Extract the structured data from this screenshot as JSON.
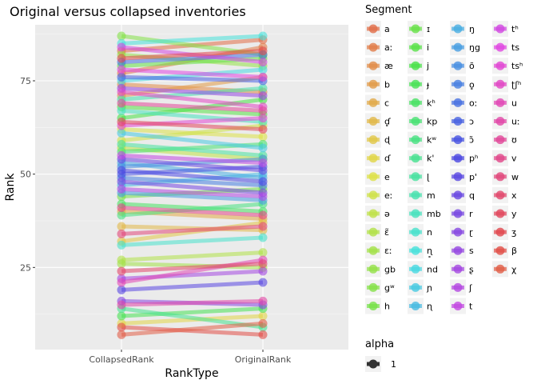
{
  "chart_data": {
    "type": "line",
    "title": "Original versus collapsed inventories",
    "xlabel": "RankType",
    "ylabel": "Rank",
    "categories": [
      "CollapsedRank",
      "OriginalRank"
    ],
    "ylim": [
      3,
      90
    ],
    "yticks": [
      25,
      50,
      75
    ],
    "grid": true,
    "legend": {
      "title": "Segment",
      "placement": "right",
      "segments": [
        "a",
        "aː",
        "æ",
        "b",
        "c",
        "ɗ̥",
        "ɖ",
        "ɗ",
        "e",
        "eː",
        "ə",
        "ɛ̃",
        "ɛː",
        "gb",
        "gʷ",
        "h",
        "ɪ",
        "i",
        "j",
        "ɟ",
        "kʰ",
        "kp",
        "kʷ",
        "k'",
        "ɭ",
        "m",
        "mb",
        "n",
        "ɳ̥",
        "nd",
        "ɲ",
        "ɳ",
        "ŋ",
        "ŋg",
        "õ",
        "o̥",
        "oː",
        "ɔ",
        "ɔ̃",
        "pʰ",
        "p'",
        "q",
        "r",
        "ɽ",
        "s",
        "ʂ",
        "ʃ",
        "t",
        "tʰ",
        "ts",
        "tsʰ",
        "ʈʃʰ",
        "u",
        "uː",
        "ʊ",
        "v",
        "w",
        "x",
        "y",
        "ʒ",
        "β",
        "χ"
      ]
    },
    "alpha_legend": {
      "title": "alpha",
      "value": "1"
    },
    "series": [
      {
        "name": "a",
        "values": [
          83,
          86
        ]
      },
      {
        "name": "aː",
        "values": [
          77,
          84
        ]
      },
      {
        "name": "æ",
        "values": [
          74,
          72
        ]
      },
      {
        "name": "b",
        "values": [
          71,
          76
        ]
      },
      {
        "name": "c",
        "values": [
          40,
          38
        ]
      },
      {
        "name": "ɗ̥",
        "values": [
          36,
          35
        ]
      },
      {
        "name": "ɖ",
        "values": [
          32,
          37
        ]
      },
      {
        "name": "ɗ",
        "values": [
          10,
          12
        ]
      },
      {
        "name": "e",
        "values": [
          62,
          60
        ]
      },
      {
        "name": "eː",
        "values": [
          59,
          63
        ]
      },
      {
        "name": "ə",
        "values": [
          57,
          54
        ]
      },
      {
        "name": "ɛ̃",
        "values": [
          27,
          29
        ]
      },
      {
        "name": "ɛː",
        "values": [
          26,
          25
        ]
      },
      {
        "name": "gb",
        "values": [
          82,
          79
        ]
      },
      {
        "name": "gʷ",
        "values": [
          87,
          82
        ]
      },
      {
        "name": "h",
        "values": [
          44,
          46
        ]
      },
      {
        "name": "ɪ",
        "values": [
          79,
          81
        ]
      },
      {
        "name": "i",
        "values": [
          68,
          66
        ]
      },
      {
        "name": "j",
        "values": [
          65,
          70
        ]
      },
      {
        "name": "ɟ",
        "values": [
          12,
          14
        ]
      },
      {
        "name": "kʰ",
        "values": [
          42,
          40
        ]
      },
      {
        "name": "kp",
        "values": [
          56,
          58
        ]
      },
      {
        "name": "kʷ",
        "values": [
          39,
          42
        ]
      },
      {
        "name": "k'",
        "values": [
          14,
          9
        ]
      },
      {
        "name": "ɭ",
        "values": [
          58,
          55
        ]
      },
      {
        "name": "m",
        "values": [
          70,
          73
        ]
      },
      {
        "name": "mb",
        "values": [
          67,
          64
        ]
      },
      {
        "name": "n",
        "values": [
          31,
          33
        ]
      },
      {
        "name": "ɳ̥",
        "values": [
          85,
          87
        ]
      },
      {
        "name": "nd",
        "values": [
          75,
          78
        ]
      },
      {
        "name": "ɲ",
        "values": [
          61,
          57
        ]
      },
      {
        "name": "ɳ",
        "values": [
          47,
          50
        ]
      },
      {
        "name": "ŋ",
        "values": [
          53,
          49
        ]
      },
      {
        "name": "ŋg",
        "values": [
          45,
          43
        ]
      },
      {
        "name": "õ",
        "values": [
          52,
          54
        ]
      },
      {
        "name": "o̥",
        "values": [
          49,
          47
        ]
      },
      {
        "name": "oː",
        "values": [
          80,
          82
        ]
      },
      {
        "name": "ɔ",
        "values": [
          76,
          75
        ]
      },
      {
        "name": "ɔ̃",
        "values": [
          50,
          52
        ]
      },
      {
        "name": "pʰ",
        "values": [
          51,
          48
        ]
      },
      {
        "name": "p'",
        "values": [
          19,
          21
        ]
      },
      {
        "name": "q",
        "values": [
          54,
          51
        ]
      },
      {
        "name": "r",
        "values": [
          48,
          45
        ]
      },
      {
        "name": "ɽ",
        "values": [
          16,
          15
        ]
      },
      {
        "name": "s",
        "values": [
          73,
          71
        ]
      },
      {
        "name": "ʂ",
        "values": [
          22,
          24
        ]
      },
      {
        "name": "ʃ",
        "values": [
          46,
          44
        ]
      },
      {
        "name": "t",
        "values": [
          55,
          53
        ]
      },
      {
        "name": "tʰ",
        "values": [
          84,
          80
        ]
      },
      {
        "name": "ts",
        "values": [
          78,
          76
        ]
      },
      {
        "name": "tsʰ",
        "values": [
          63,
          65
        ]
      },
      {
        "name": "ʈʃʰ",
        "values": [
          72,
          68
        ]
      },
      {
        "name": "u",
        "values": [
          21,
          27
        ]
      },
      {
        "name": "uː",
        "values": [
          15,
          16
        ]
      },
      {
        "name": "ʊ",
        "values": [
          69,
          67
        ]
      },
      {
        "name": "v",
        "values": [
          41,
          39
        ]
      },
      {
        "name": "w",
        "values": [
          34,
          36
        ]
      },
      {
        "name": "x",
        "values": [
          24,
          26
        ]
      },
      {
        "name": "y",
        "values": [
          64,
          62
        ]
      },
      {
        "name": "ʒ",
        "values": [
          81,
          83
        ]
      },
      {
        "name": "β",
        "values": [
          9,
          7
        ]
      },
      {
        "name": "χ",
        "values": [
          7,
          10
        ]
      }
    ]
  }
}
